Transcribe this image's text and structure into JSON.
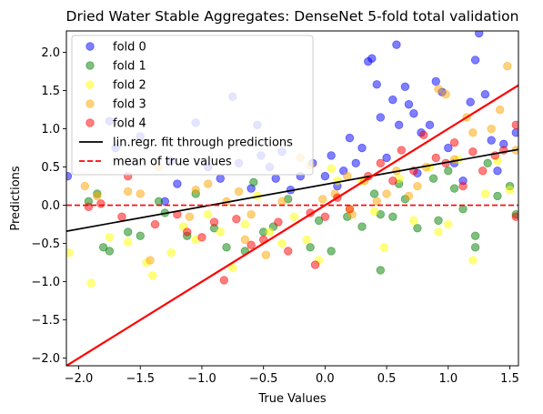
{
  "chart_data": {
    "type": "scatter",
    "title": "Dried Water Stable Aggregates: DenseNet 5-fold total validation",
    "xlabel": "True Values",
    "ylabel": "Predictions",
    "xlim": [
      -2.1,
      1.57
    ],
    "ylim": [
      -2.1,
      2.28
    ],
    "xticks": [
      -2.0,
      -1.5,
      -1.0,
      -0.5,
      0.0,
      0.5,
      1.0,
      1.5
    ],
    "yticks": [
      -2.0,
      -1.5,
      -1.0,
      -0.5,
      0.0,
      0.5,
      1.0,
      1.5,
      2.0
    ],
    "xtick_labels": [
      "−2.0",
      "−1.5",
      "−1.0",
      "−0.5",
      "0.0",
      "0.5",
      "1.0",
      "1.5"
    ],
    "ytick_labels": [
      "−2.0",
      "−1.5",
      "−1.0",
      "−0.5",
      "0.0",
      "0.5",
      "1.0",
      "1.5",
      "2.0"
    ],
    "legend_position": "top-left",
    "marker_alpha": 0.5,
    "series": [
      {
        "name": "fold 0",
        "color": "#0000ff",
        "points": [
          [
            -2.09,
            0.38
          ],
          [
            -1.75,
            1.1
          ],
          [
            -1.7,
            0.75
          ],
          [
            -1.5,
            0.9
          ],
          [
            -1.3,
            0.05
          ],
          [
            -1.25,
            0.58
          ],
          [
            -1.2,
            0.28
          ],
          [
            -1.05,
            1.08
          ],
          [
            -0.95,
            0.5
          ],
          [
            -0.85,
            0.35
          ],
          [
            -0.75,
            1.42
          ],
          [
            -0.7,
            0.55
          ],
          [
            -0.6,
            0.22
          ],
          [
            -0.55,
            1.05
          ],
          [
            -0.52,
            0.65
          ],
          [
            -0.45,
            0.5
          ],
          [
            -0.4,
            0.35
          ],
          [
            -0.35,
            0.7
          ],
          [
            -0.28,
            0.2
          ],
          [
            -0.2,
            0.38
          ],
          [
            -0.1,
            0.55
          ],
          [
            0.0,
            0.38
          ],
          [
            0.05,
            0.65
          ],
          [
            0.1,
            0.25
          ],
          [
            0.15,
            0.45
          ],
          [
            0.2,
            0.88
          ],
          [
            0.25,
            0.55
          ],
          [
            0.3,
            0.75
          ],
          [
            0.35,
            1.88
          ],
          [
            0.38,
            1.92
          ],
          [
            0.42,
            1.58
          ],
          [
            0.45,
            1.15
          ],
          [
            0.5,
            0.62
          ],
          [
            0.55,
            1.38
          ],
          [
            0.58,
            2.1
          ],
          [
            0.6,
            1.05
          ],
          [
            0.65,
            1.55
          ],
          [
            0.68,
            1.32
          ],
          [
            0.72,
            1.2
          ],
          [
            0.75,
            0.42
          ],
          [
            0.78,
            0.95
          ],
          [
            0.85,
            1.05
          ],
          [
            0.9,
            1.62
          ],
          [
            0.95,
            1.48
          ],
          [
            1.0,
            0.75
          ],
          [
            1.05,
            0.55
          ],
          [
            1.12,
            0.32
          ],
          [
            1.18,
            1.35
          ],
          [
            1.22,
            1.9
          ],
          [
            1.25,
            2.25
          ],
          [
            1.3,
            1.45
          ],
          [
            1.35,
            0.85
          ],
          [
            1.4,
            0.45
          ],
          [
            1.45,
            0.8
          ],
          [
            1.55,
            0.95
          ]
        ]
      },
      {
        "name": "fold 1",
        "color": "#008000",
        "points": [
          [
            -1.92,
            0.05
          ],
          [
            -1.85,
            0.15
          ],
          [
            -1.8,
            -0.55
          ],
          [
            -1.75,
            -0.6
          ],
          [
            -1.6,
            -0.35
          ],
          [
            -1.5,
            -0.4
          ],
          [
            -1.35,
            0.05
          ],
          [
            -1.3,
            -0.1
          ],
          [
            -1.12,
            -0.4
          ],
          [
            -1.05,
            0.15
          ],
          [
            -0.9,
            -0.3
          ],
          [
            -0.8,
            -0.55
          ],
          [
            -0.65,
            -0.6
          ],
          [
            -0.58,
            0.3
          ],
          [
            -0.5,
            -0.35
          ],
          [
            -0.42,
            -0.28
          ],
          [
            -0.3,
            0.08
          ],
          [
            -0.12,
            -0.55
          ],
          [
            -0.05,
            -0.2
          ],
          [
            0.05,
            -0.6
          ],
          [
            0.18,
            -0.15
          ],
          [
            0.3,
            -0.28
          ],
          [
            0.4,
            0.15
          ],
          [
            0.45,
            -0.12
          ],
          [
            0.45,
            -0.85
          ],
          [
            0.55,
            -0.15
          ],
          [
            0.6,
            0.28
          ],
          [
            0.65,
            0.08
          ],
          [
            0.75,
            -0.3
          ],
          [
            0.88,
            0.35
          ],
          [
            0.92,
            -0.2
          ],
          [
            1.0,
            0.45
          ],
          [
            1.05,
            0.22
          ],
          [
            1.12,
            -0.05
          ],
          [
            1.22,
            -0.4
          ],
          [
            1.22,
            -0.55
          ],
          [
            1.32,
            0.55
          ],
          [
            1.4,
            0.12
          ],
          [
            1.5,
            0.25
          ],
          [
            1.55,
            -0.12
          ]
        ]
      },
      {
        "name": "fold 2",
        "color": "#ffff00",
        "points": [
          [
            -2.08,
            -0.62
          ],
          [
            -1.9,
            -1.02
          ],
          [
            -1.75,
            -0.42
          ],
          [
            -1.6,
            -0.48
          ],
          [
            -1.45,
            -0.75
          ],
          [
            -1.4,
            -0.92
          ],
          [
            -1.25,
            -0.62
          ],
          [
            -1.15,
            -0.28
          ],
          [
            -1.05,
            -0.45
          ],
          [
            -0.95,
            -0.12
          ],
          [
            -0.85,
            -0.35
          ],
          [
            -0.75,
            -0.82
          ],
          [
            -0.65,
            -0.25
          ],
          [
            -0.55,
            0.12
          ],
          [
            -0.45,
            -0.35
          ],
          [
            -0.35,
            -0.5
          ],
          [
            -0.25,
            -0.15
          ],
          [
            -0.15,
            -0.45
          ],
          [
            -0.05,
            -0.72
          ],
          [
            0.05,
            0.48
          ],
          [
            0.1,
            0.32
          ],
          [
            0.2,
            -0.05
          ],
          [
            0.3,
            0.32
          ],
          [
            0.4,
            -0.08
          ],
          [
            0.48,
            -0.55
          ],
          [
            0.6,
            0.35
          ],
          [
            0.72,
            -0.2
          ],
          [
            0.85,
            0.5
          ],
          [
            0.92,
            -0.35
          ],
          [
            1.0,
            -0.25
          ],
          [
            1.08,
            0.6
          ],
          [
            1.2,
            -0.72
          ],
          [
            1.3,
            0.15
          ],
          [
            1.4,
            0.58
          ],
          [
            1.5,
            0.2
          ]
        ]
      },
      {
        "name": "fold 3",
        "color": "#ffa500",
        "points": [
          [
            -1.95,
            0.25
          ],
          [
            -1.85,
            0.12
          ],
          [
            -1.6,
            0.18
          ],
          [
            -1.5,
            0.15
          ],
          [
            -1.42,
            -0.72
          ],
          [
            -1.35,
            0.5
          ],
          [
            -1.1,
            -0.15
          ],
          [
            -1.05,
            0.2
          ],
          [
            -0.95,
            0.28
          ],
          [
            -0.8,
            0.05
          ],
          [
            -0.7,
            0.18
          ],
          [
            -0.65,
            -0.45
          ],
          [
            -0.6,
            -0.12
          ],
          [
            -0.48,
            -0.65
          ],
          [
            -0.35,
            0.05
          ],
          [
            -0.2,
            0.62
          ],
          [
            -0.12,
            0.52
          ],
          [
            -0.02,
            0.08
          ],
          [
            0.08,
            0.15
          ],
          [
            0.18,
            0.38
          ],
          [
            0.22,
            -0.12
          ],
          [
            0.32,
            0.32
          ],
          [
            0.42,
            0.05
          ],
          [
            0.5,
            0.15
          ],
          [
            0.58,
            0.45
          ],
          [
            0.68,
            0.12
          ],
          [
            0.75,
            0.25
          ],
          [
            0.82,
            0.5
          ],
          [
            0.92,
            1.52
          ],
          [
            0.98,
            1.45
          ],
          [
            1.05,
            0.6
          ],
          [
            1.15,
            1.15
          ],
          [
            1.2,
            0.95
          ],
          [
            1.35,
            1.0
          ],
          [
            1.42,
            1.25
          ],
          [
            1.48,
            1.82
          ],
          [
            1.55,
            0.72
          ]
        ]
      },
      {
        "name": "fold 4",
        "color": "#ff0000",
        "points": [
          [
            -1.92,
            -0.02
          ],
          [
            -1.82,
            0.02
          ],
          [
            -1.65,
            -0.15
          ],
          [
            -1.6,
            0.38
          ],
          [
            -1.38,
            -0.25
          ],
          [
            -1.2,
            -0.12
          ],
          [
            -1.12,
            -0.35
          ],
          [
            -1.0,
            -0.42
          ],
          [
            -0.9,
            -0.22
          ],
          [
            -0.82,
            -0.98
          ],
          [
            -0.72,
            -0.18
          ],
          [
            -0.6,
            -0.52
          ],
          [
            -0.5,
            -0.45
          ],
          [
            -0.38,
            -0.22
          ],
          [
            -0.3,
            -0.6
          ],
          [
            -0.12,
            -0.1
          ],
          [
            -0.08,
            -0.78
          ],
          [
            0.0,
            -0.15
          ],
          [
            0.1,
            0.1
          ],
          [
            0.2,
            -0.05
          ],
          [
            0.35,
            0.38
          ],
          [
            0.45,
            0.55
          ],
          [
            0.55,
            0.32
          ],
          [
            0.62,
            0.72
          ],
          [
            0.72,
            0.45
          ],
          [
            0.8,
            0.92
          ],
          [
            0.9,
            0.62
          ],
          [
            0.98,
            0.55
          ],
          [
            1.05,
            0.82
          ],
          [
            1.12,
            0.25
          ],
          [
            1.2,
            0.7
          ],
          [
            1.28,
            0.45
          ],
          [
            1.38,
            0.65
          ],
          [
            1.45,
            0.72
          ],
          [
            1.55,
            1.05
          ],
          [
            1.55,
            -0.15
          ]
        ]
      }
    ],
    "lines": [
      {
        "name": "lin.regr. fit through predictions",
        "color": "#000000",
        "style": "solid",
        "x": [
          -2.1,
          1.57
        ],
        "y": [
          -0.34,
          0.73
        ]
      },
      {
        "name": "mean of true values",
        "color": "#ff0000",
        "style": "dashed",
        "x": [
          -2.1,
          1.57
        ],
        "y": [
          0.0,
          0.0
        ]
      },
      {
        "name": "",
        "color": "#ff0000",
        "style": "solid-thick",
        "x": [
          -2.1,
          1.57
        ],
        "y": [
          -2.1,
          1.57
        ]
      }
    ]
  }
}
